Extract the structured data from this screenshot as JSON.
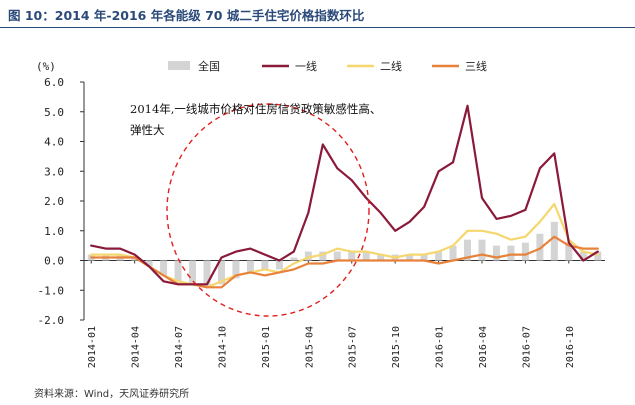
{
  "figure": {
    "title": "图 10：2014 年-2016 年各能级 70 城二手住宅价格指数环比",
    "source": "资料来源：Wind，天风证券研究所"
  },
  "colors": {
    "全国": "#d4d4d4",
    "一线": "#8b1a3a",
    "二线": "#f5d76e",
    "三线": "#e8823a",
    "circle": "#e0211d",
    "title": "#2b4a7a"
  },
  "chart_data": {
    "type": "line",
    "title": "",
    "unit_label": "(%)",
    "xlabel": "",
    "ylabel": "",
    "ylim": [
      -2.0,
      6.0
    ],
    "yticks": [
      "6.0",
      "5.0",
      "4.0",
      "3.0",
      "2.0",
      "1.0",
      "0.0",
      "-1.0",
      "-2.0"
    ],
    "x_tick_labels": [
      "2014-01",
      "2014-04",
      "2014-07",
      "2014-10",
      "2015-01",
      "2015-04",
      "2015-07",
      "2015-10",
      "2016-01",
      "2016-04",
      "2016-07",
      "2016-10"
    ],
    "x": [
      "2014-01",
      "2014-02",
      "2014-03",
      "2014-04",
      "2014-05",
      "2014-06",
      "2014-07",
      "2014-08",
      "2014-09",
      "2014-10",
      "2014-11",
      "2014-12",
      "2015-01",
      "2015-02",
      "2015-03",
      "2015-04",
      "2015-05",
      "2015-06",
      "2015-07",
      "2015-08",
      "2015-09",
      "2015-10",
      "2015-11",
      "2015-12",
      "2016-01",
      "2016-02",
      "2016-03",
      "2016-04",
      "2016-05",
      "2016-06",
      "2016-07",
      "2016-08",
      "2016-09",
      "2016-10",
      "2016-11",
      "2016-12"
    ],
    "legend_placement": "top",
    "grid": false,
    "series": [
      {
        "name": "全国",
        "kind": "bar",
        "values": [
          0.2,
          0.2,
          0.2,
          0.1,
          -0.2,
          -0.5,
          -0.8,
          -0.8,
          -0.9,
          -0.8,
          -0.6,
          -0.4,
          -0.3,
          -0.3,
          0.1,
          0.3,
          0.3,
          0.3,
          0.3,
          0.3,
          0.2,
          0.2,
          0.2,
          0.2,
          0.3,
          0.5,
          0.7,
          0.7,
          0.5,
          0.5,
          0.6,
          0.9,
          1.3,
          0.6,
          0.3,
          0.3
        ]
      },
      {
        "name": "一线",
        "kind": "line",
        "values": [
          0.5,
          0.4,
          0.4,
          0.2,
          -0.2,
          -0.7,
          -0.8,
          -0.8,
          -0.8,
          0.1,
          0.3,
          0.4,
          0.2,
          0.0,
          0.3,
          1.6,
          3.9,
          3.1,
          2.7,
          2.1,
          1.6,
          1.0,
          1.3,
          1.8,
          3.0,
          3.3,
          5.2,
          2.1,
          1.4,
          1.5,
          1.7,
          3.1,
          3.6,
          0.6,
          0.0,
          0.3
        ]
      },
      {
        "name": "二线",
        "kind": "line",
        "values": [
          0.2,
          0.2,
          0.2,
          0.1,
          -0.2,
          -0.5,
          -0.7,
          -0.8,
          -0.9,
          -0.7,
          -0.5,
          -0.4,
          -0.3,
          -0.4,
          -0.1,
          0.1,
          0.2,
          0.4,
          0.3,
          0.3,
          0.2,
          0.1,
          0.2,
          0.2,
          0.3,
          0.5,
          1.0,
          1.0,
          0.9,
          0.7,
          0.8,
          1.3,
          1.9,
          0.7,
          0.3,
          0.2
        ]
      },
      {
        "name": "三线",
        "kind": "line",
        "values": [
          0.1,
          0.1,
          0.1,
          0.1,
          -0.2,
          -0.5,
          -0.8,
          -0.8,
          -0.9,
          -0.9,
          -0.5,
          -0.4,
          -0.5,
          -0.4,
          -0.3,
          -0.1,
          -0.1,
          0.0,
          0.0,
          0.0,
          0.0,
          0.0,
          0.0,
          0.0,
          -0.1,
          0.0,
          0.1,
          0.2,
          0.1,
          0.2,
          0.2,
          0.4,
          0.8,
          0.5,
          0.4,
          0.4
        ]
      }
    ],
    "annotations": [
      "2014年,一线城市价格对住房信贷政策敏感性高、",
      "弹性大"
    ]
  }
}
